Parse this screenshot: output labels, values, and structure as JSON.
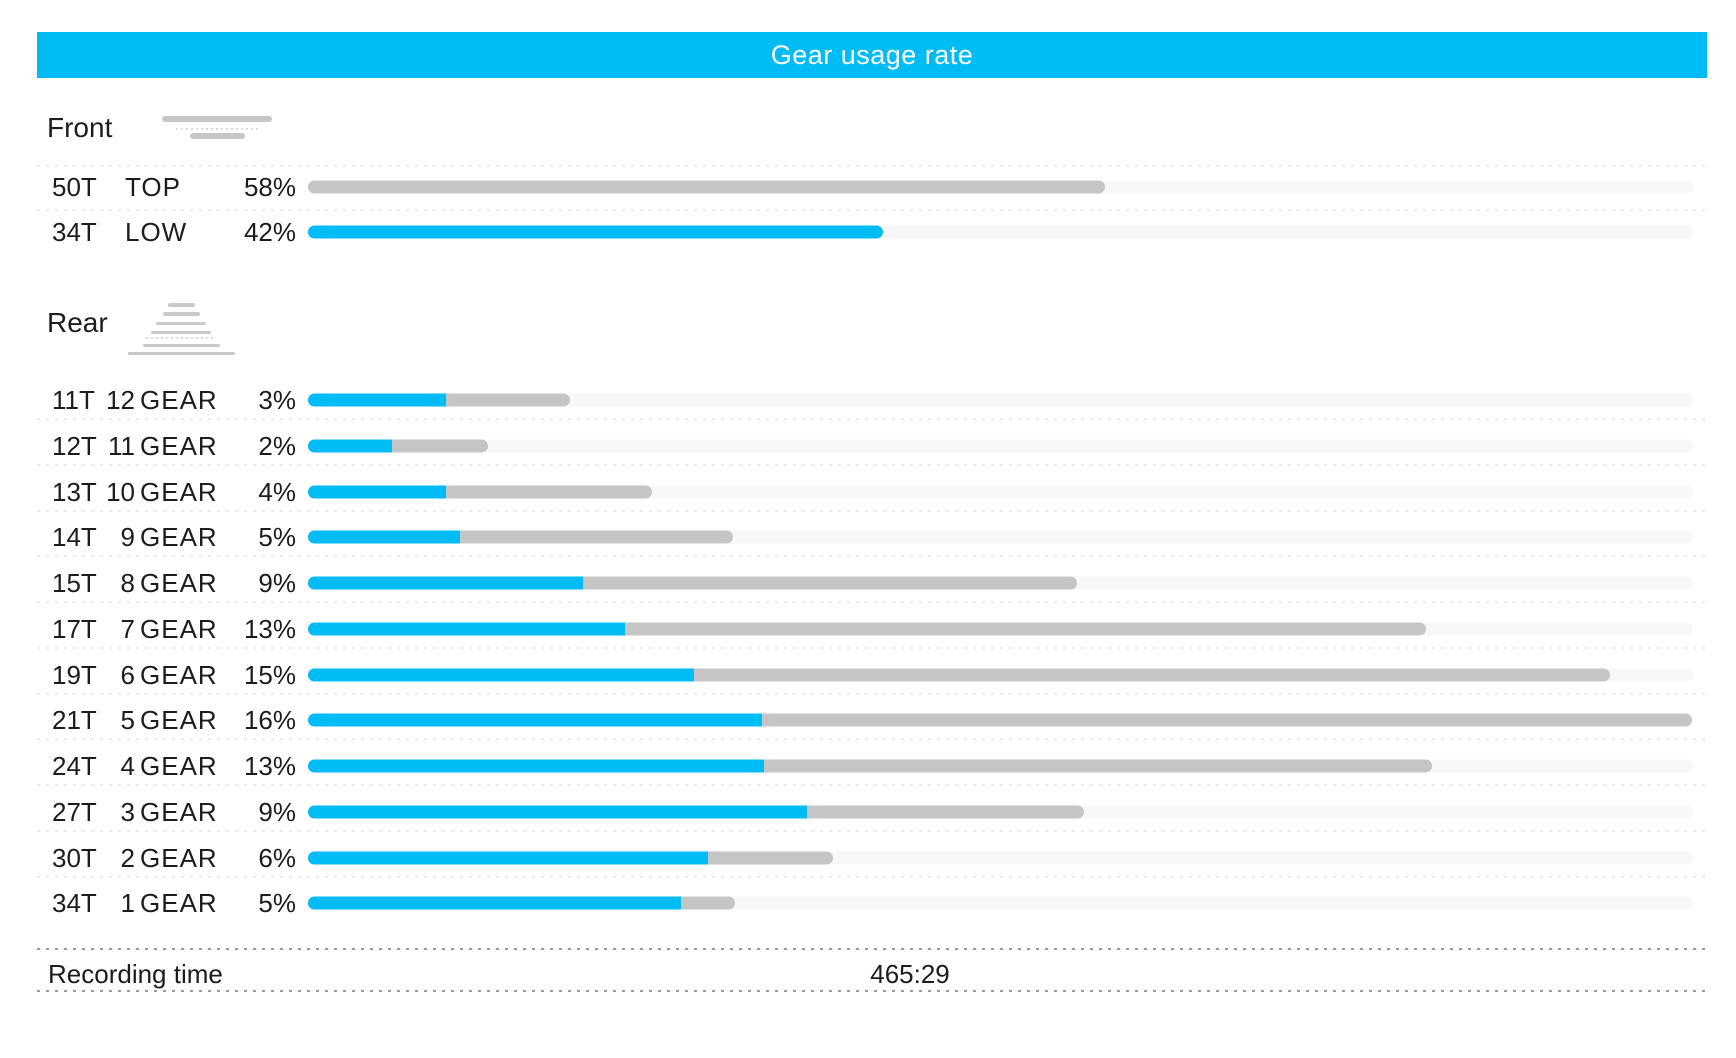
{
  "title": "Gear usage rate",
  "colors": {
    "accent_blue": "#00bcf4",
    "bar_gray": "#c5c5c5",
    "bar_track": "#f8f8f8",
    "title_text": "#ffffff",
    "text": "#1c1c1c",
    "dotted_rule": "#999999"
  },
  "front": {
    "label": "Front",
    "icon": "front-chainring-icon",
    "rows": [
      {
        "teeth": "50T",
        "position": "TOP",
        "percent": "58%",
        "value": 58,
        "bar_color": "gray",
        "bar_len": 797
      },
      {
        "teeth": "34T",
        "position": "LOW",
        "percent": "42%",
        "value": 42,
        "bar_color": "blue",
        "bar_len": 575
      }
    ]
  },
  "rear": {
    "label": "Rear",
    "icon": "rear-cassette-icon",
    "gear_word": "GEAR",
    "rows": [
      {
        "teeth": "11T",
        "gear_num": "12",
        "percent": "3%",
        "value": 3,
        "total_len": 262,
        "blue_len": 138
      },
      {
        "teeth": "12T",
        "gear_num": "11",
        "percent": "2%",
        "value": 2,
        "total_len": 180,
        "blue_len": 84
      },
      {
        "teeth": "13T",
        "gear_num": "10",
        "percent": "4%",
        "value": 4,
        "total_len": 344,
        "blue_len": 138
      },
      {
        "teeth": "14T",
        "gear_num": "9",
        "percent": "5%",
        "value": 5,
        "total_len": 425,
        "blue_len": 152
      },
      {
        "teeth": "15T",
        "gear_num": "8",
        "percent": "9%",
        "value": 9,
        "total_len": 769,
        "blue_len": 275
      },
      {
        "teeth": "17T",
        "gear_num": "7",
        "percent": "13%",
        "value": 13,
        "total_len": 1118,
        "blue_len": 317
      },
      {
        "teeth": "19T",
        "gear_num": "6",
        "percent": "15%",
        "value": 15,
        "total_len": 1302,
        "blue_len": 386
      },
      {
        "teeth": "21T",
        "gear_num": "5",
        "percent": "16%",
        "value": 16,
        "total_len": 1384,
        "blue_len": 454
      },
      {
        "teeth": "24T",
        "gear_num": "4",
        "percent": "13%",
        "value": 13,
        "total_len": 1124,
        "blue_len": 456
      },
      {
        "teeth": "27T",
        "gear_num": "3",
        "percent": "9%",
        "value": 9,
        "total_len": 776,
        "blue_len": 499
      },
      {
        "teeth": "30T",
        "gear_num": "2",
        "percent": "6%",
        "value": 6,
        "total_len": 525,
        "blue_len": 400
      },
      {
        "teeth": "34T",
        "gear_num": "1",
        "percent": "5%",
        "value": 5,
        "total_len": 427,
        "blue_len": 373
      }
    ]
  },
  "footer": {
    "label": "Recording time",
    "value": "465:29"
  },
  "chart_data": {
    "type": "bar",
    "orientation": "horizontal",
    "title": "Gear usage rate",
    "legend": "off",
    "scale_note": "bar length proportional to usage percent; rear 16% bar spans full track width",
    "groups": [
      {
        "name": "Front",
        "categories": [
          "50T TOP",
          "34T LOW"
        ],
        "values": [
          58,
          42
        ],
        "unit": "%"
      },
      {
        "name": "Rear",
        "categories": [
          "11T 12GEAR",
          "12T 11GEAR",
          "13T 10GEAR",
          "14T 9GEAR",
          "15T 8GEAR",
          "17T 7GEAR",
          "19T 6GEAR",
          "21T 5GEAR",
          "24T 4GEAR",
          "27T 3GEAR",
          "30T 2GEAR",
          "34T 1GEAR"
        ],
        "values": [
          3,
          2,
          4,
          5,
          9,
          13,
          15,
          16,
          13,
          9,
          6,
          5
        ],
        "unit": "%",
        "series": [
          {
            "name": "blue-segment-share",
            "values": [
              0.53,
              0.47,
              0.4,
              0.36,
              0.36,
              0.28,
              0.3,
              0.33,
              0.41,
              0.64,
              0.76,
              0.87
            ]
          },
          {
            "name": "gray-segment-share",
            "values": [
              0.47,
              0.53,
              0.6,
              0.64,
              0.64,
              0.72,
              0.7,
              0.67,
              0.59,
              0.36,
              0.24,
              0.13
            ]
          }
        ]
      }
    ],
    "footer": {
      "label": "Recording time",
      "value": "465:29"
    }
  }
}
